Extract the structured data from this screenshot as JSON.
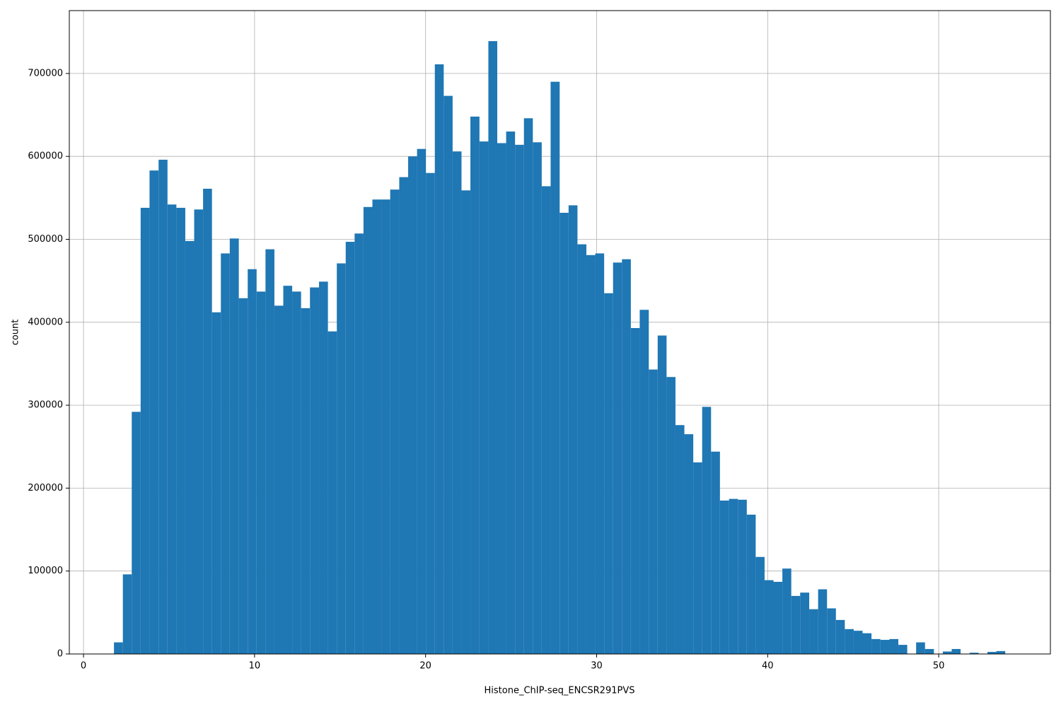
{
  "chart_data": {
    "type": "histogram",
    "xlabel": "Histone_ChIP-seq_ENCSR291PVS",
    "ylabel": "count",
    "color": "#1f77b4",
    "grid": true,
    "xlim": [
      -0.83,
      56.53
    ],
    "ylim": [
      0,
      775800
    ],
    "xticks": [
      0,
      10,
      20,
      30,
      40,
      50
    ],
    "yticks": [
      0,
      100000,
      200000,
      300000,
      400000,
      500000,
      600000,
      700000
    ],
    "bins": [
      1.78,
      2.3,
      2.82,
      3.34,
      3.86,
      4.39,
      4.91,
      5.43,
      5.95,
      6.47,
      6.99,
      7.51,
      8.03,
      8.55,
      9.08,
      9.6,
      10.12,
      10.64,
      11.16,
      11.68,
      12.2,
      12.72,
      13.24,
      13.77,
      14.29,
      14.81,
      15.33,
      15.85,
      16.37,
      16.89,
      17.41,
      17.93,
      18.46,
      18.98,
      19.5,
      20.02,
      20.54,
      21.06,
      21.58,
      22.1,
      22.62,
      23.15,
      23.67,
      24.19,
      24.71,
      25.23,
      25.75,
      26.27,
      26.79,
      27.31,
      27.84,
      28.36,
      28.88,
      29.4,
      29.92,
      30.44,
      30.96,
      31.48,
      32.0,
      32.52,
      33.05,
      33.57,
      34.09,
      34.61,
      35.13,
      35.65,
      36.17,
      36.69,
      37.21,
      37.74,
      38.26,
      38.78,
      39.3,
      39.82,
      40.34,
      40.86,
      41.38,
      41.9,
      42.43,
      42.95,
      43.47,
      43.99,
      44.51,
      45.03,
      45.55,
      46.07,
      46.59,
      47.12,
      47.64,
      48.16,
      48.68,
      49.2,
      49.72,
      50.24,
      50.76,
      51.28,
      51.81,
      52.33,
      52.85,
      53.37,
      53.89
    ],
    "values": [
      14000,
      96000,
      292000,
      538000,
      583000,
      596000,
      542000,
      538000,
      498000,
      536000,
      561000,
      412000,
      483000,
      501000,
      429000,
      464000,
      437000,
      488000,
      420000,
      444000,
      437000,
      417000,
      442000,
      449000,
      389000,
      471000,
      497000,
      507000,
      539000,
      548000,
      548000,
      560000,
      575000,
      600000,
      609000,
      580000,
      711000,
      673000,
      606000,
      559000,
      648000,
      618000,
      739000,
      616000,
      630000,
      614000,
      646000,
      617000,
      564000,
      690000,
      532000,
      541000,
      494000,
      481000,
      483000,
      435000,
      472000,
      476000,
      393000,
      415000,
      343000,
      384000,
      334000,
      276000,
      265000,
      231000,
      298000,
      244000,
      185000,
      187000,
      186000,
      168000,
      117000,
      89000,
      87000,
      103000,
      70000,
      74000,
      54000,
      78000,
      55000,
      41000,
      30000,
      28000,
      25000,
      18000,
      17000,
      18000,
      11000,
      0,
      14000,
      6000,
      0,
      3000,
      6000,
      0,
      1500,
      0,
      2500,
      3500
    ]
  }
}
